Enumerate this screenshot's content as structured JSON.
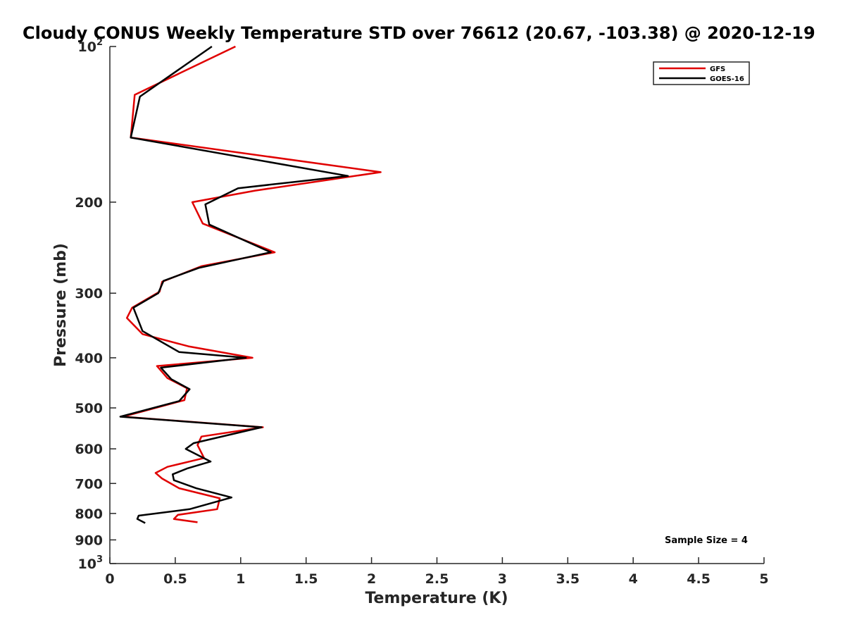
{
  "chart_data": {
    "type": "line",
    "title": "Cloudy CONUS Weekly Temperature STD over 76612 (20.67, -103.38) @ 2020-12-19",
    "xlabel": "Temperature (K)",
    "ylabel": "Pressure (mb)",
    "xlim": [
      0,
      5
    ],
    "ylim": [
      100,
      1000
    ],
    "yscale": "log",
    "yreversed": true,
    "xticks": [
      0,
      0.5,
      1,
      1.5,
      2,
      2.5,
      3,
      3.5,
      4,
      4.5,
      5
    ],
    "xtick_labels": [
      "0",
      "0.5",
      "1",
      "1.5",
      "2",
      "2.5",
      "3",
      "3.5",
      "4",
      "4.5",
      "5"
    ],
    "yticks": [
      100,
      200,
      300,
      400,
      500,
      600,
      700,
      800,
      900,
      1000
    ],
    "ytick_labels": [
      {
        "base": "10",
        "exp": "2"
      },
      {
        "base": "200",
        "exp": ""
      },
      {
        "base": "300",
        "exp": ""
      },
      {
        "base": "400",
        "exp": ""
      },
      {
        "base": "500",
        "exp": ""
      },
      {
        "base": "600",
        "exp": ""
      },
      {
        "base": "700",
        "exp": ""
      },
      {
        "base": "800",
        "exp": ""
      },
      {
        "base": "900",
        "exp": ""
      },
      {
        "base": "10",
        "exp": "3"
      }
    ],
    "grid": false,
    "legend_position": "top-right",
    "annotation": "Sample Size = 4",
    "series": [
      {
        "name": "GFS",
        "color": "#e00000",
        "x": [
          0.96,
          0.19,
          0.16,
          2.07,
          1.11,
          0.63,
          0.71,
          1.26,
          0.7,
          0.4,
          0.38,
          0.17,
          0.13,
          0.25,
          0.6,
          1.09,
          0.36,
          0.44,
          0.59,
          0.57,
          0.1,
          1.17,
          0.7,
          0.67,
          0.72,
          0.44,
          0.35,
          0.4,
          0.53,
          0.84,
          0.82,
          0.52,
          0.49,
          0.67
        ],
        "y": [
          100,
          124,
          150,
          175,
          190,
          200,
          220,
          250,
          266,
          285,
          298,
          320,
          335,
          360,
          380,
          400,
          415,
          438,
          458,
          483,
          520,
          545,
          568,
          590,
          625,
          650,
          668,
          685,
          715,
          748,
          785,
          805,
          820,
          832
        ]
      },
      {
        "name": "GOES-16",
        "color": "#000000",
        "x": [
          0.78,
          0.23,
          0.16,
          1.82,
          0.98,
          0.73,
          0.76,
          1.23,
          0.68,
          0.41,
          0.37,
          0.18,
          0.25,
          0.53,
          1.04,
          0.39,
          0.47,
          0.61,
          0.53,
          0.08,
          1.16,
          0.64,
          0.58,
          0.77,
          0.59,
          0.48,
          0.49,
          0.66,
          0.93,
          0.61,
          0.22,
          0.21,
          0.27
        ],
        "y": [
          100,
          125,
          150,
          178,
          188,
          202,
          221,
          250,
          268,
          284,
          300,
          320,
          355,
          390,
          400,
          418,
          440,
          460,
          485,
          520,
          545,
          585,
          600,
          635,
          655,
          672,
          690,
          715,
          745,
          785,
          808,
          820,
          835
        ]
      }
    ]
  }
}
